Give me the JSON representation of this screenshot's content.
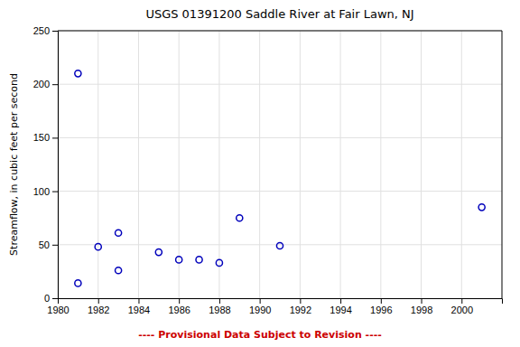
{
  "chart_data": {
    "type": "scatter",
    "title": "USGS 01391200 Saddle River at Fair Lawn, NJ",
    "ylabel": "Streamflow, in cubic feet per second",
    "footnote": "---- Provisional Data Subject to Revision ----",
    "x": [
      1981,
      1981,
      1982,
      1983,
      1983,
      1985,
      1986,
      1987,
      1988,
      1989,
      1991,
      2001
    ],
    "values": [
      14,
      210,
      48,
      26,
      61,
      43,
      36,
      36,
      33,
      75,
      49,
      85
    ],
    "color": "#0000bb",
    "marker": "circle",
    "xlim": [
      1980,
      2002
    ],
    "ylim": [
      0,
      250
    ],
    "xticks": [
      1980,
      1982,
      1984,
      1986,
      1988,
      1990,
      1992,
      1994,
      1996,
      1998,
      2000
    ],
    "yticks": [
      0,
      50,
      100,
      150,
      200,
      250
    ],
    "grid": true
  }
}
